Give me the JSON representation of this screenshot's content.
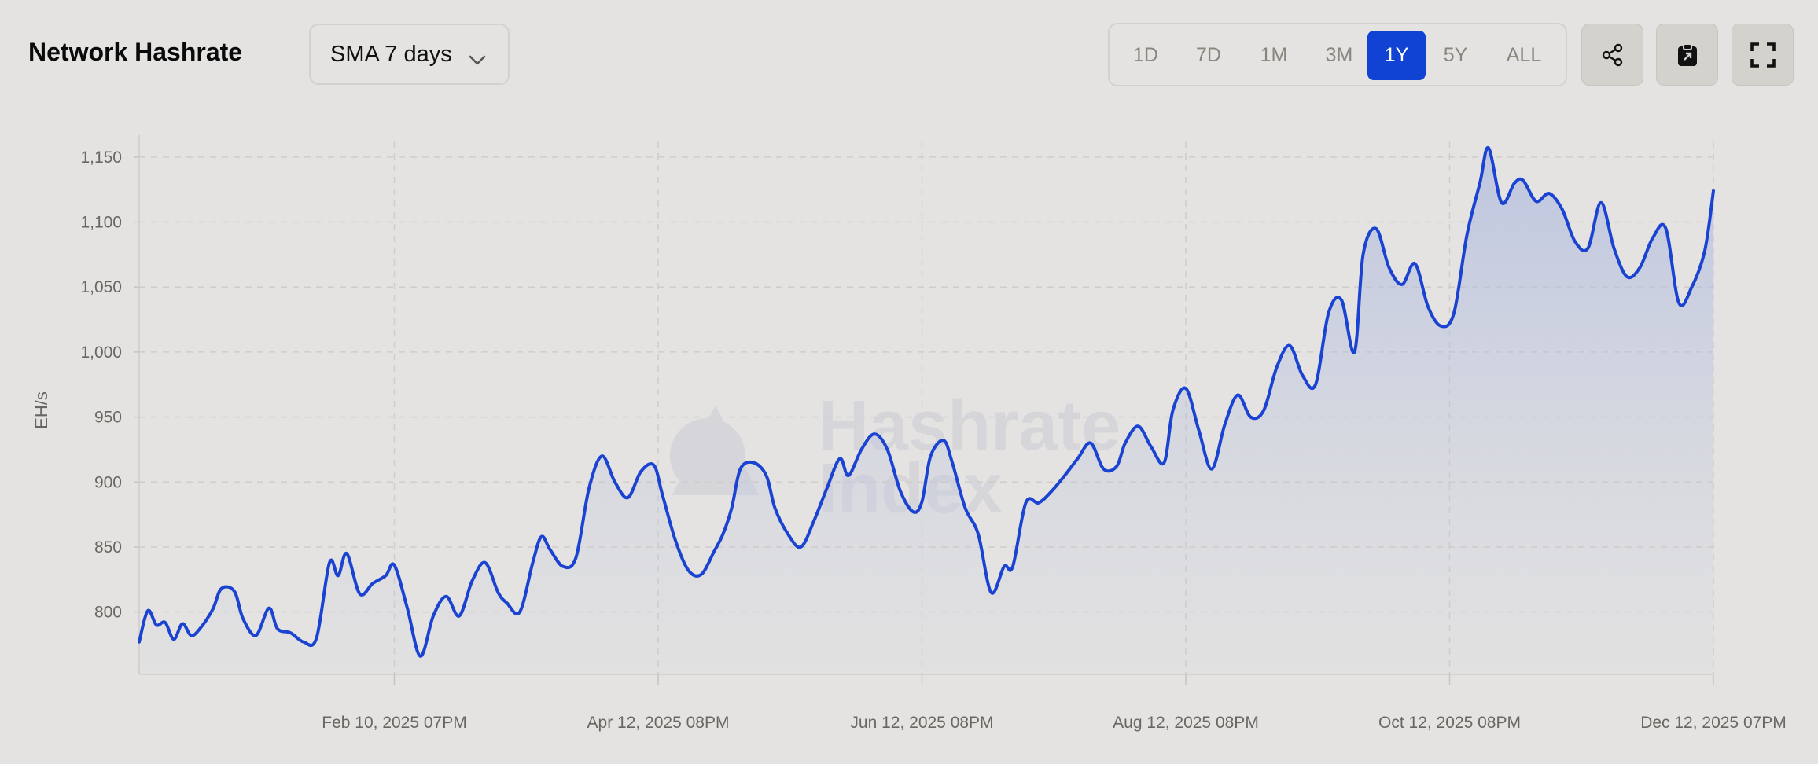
{
  "header": {
    "title": "Network Hashrate",
    "smoothing_select": {
      "value": "SMA 7 days"
    },
    "ranges": [
      "1D",
      "7D",
      "1M",
      "3M",
      "1Y",
      "5Y",
      "ALL"
    ],
    "active_range": "1Y",
    "actions": {
      "share_icon": "share-icon",
      "clipboard_icon": "clipboard-icon",
      "fullscreen_icon": "fullscreen-icon"
    }
  },
  "colors": {
    "background": "#e4e3e1",
    "line": "#1a43d2",
    "active_range": "#1043d4",
    "grid": "#cfcdca"
  },
  "watermark": [
    "Hashrate",
    "Index"
  ],
  "chart_data": {
    "type": "area",
    "title": "",
    "ylabel": "EH/s",
    "xlabel": "",
    "ylim": [
      752,
      1162
    ],
    "yticks": [
      800,
      850,
      900,
      950,
      1000,
      1050,
      1100,
      1150
    ],
    "x_start": "2024-12-13",
    "x_end": "2025-12-12",
    "xticks": [
      {
        "date": "2025-02-10",
        "label": "Feb 10, 2025 07PM"
      },
      {
        "date": "2025-04-12",
        "label": "Apr 12, 2025 08PM"
      },
      {
        "date": "2025-06-12",
        "label": "Jun 12, 2025 08PM"
      },
      {
        "date": "2025-08-12",
        "label": "Aug 12, 2025 08PM"
      },
      {
        "date": "2025-10-12",
        "label": "Oct 12, 2025 08PM"
      },
      {
        "date": "2025-12-12",
        "label": "Dec 12, 2025 07PM"
      }
    ],
    "grid": true,
    "series": [
      {
        "points": [
          [
            "2024-12-13",
            777
          ],
          [
            "2024-12-15",
            801
          ],
          [
            "2024-12-17",
            790
          ],
          [
            "2024-12-19",
            792
          ],
          [
            "2024-12-21",
            779
          ],
          [
            "2024-12-23",
            791
          ],
          [
            "2024-12-25",
            782
          ],
          [
            "2024-12-27",
            787
          ],
          [
            "2024-12-30",
            802
          ],
          [
            "2025-01-01",
            818
          ],
          [
            "2025-01-04",
            816
          ],
          [
            "2025-01-06",
            795
          ],
          [
            "2025-01-09",
            782
          ],
          [
            "2025-01-12",
            803
          ],
          [
            "2025-01-14",
            787
          ],
          [
            "2025-01-17",
            784
          ],
          [
            "2025-01-20",
            777
          ],
          [
            "2025-01-23",
            780
          ],
          [
            "2025-01-26",
            838
          ],
          [
            "2025-01-28",
            828
          ],
          [
            "2025-01-30",
            845
          ],
          [
            "2025-02-02",
            814
          ],
          [
            "2025-02-05",
            822
          ],
          [
            "2025-02-08",
            828
          ],
          [
            "2025-02-10",
            836
          ],
          [
            "2025-02-13",
            803
          ],
          [
            "2025-02-16",
            766
          ],
          [
            "2025-02-19",
            797
          ],
          [
            "2025-02-22",
            812
          ],
          [
            "2025-02-25",
            797
          ],
          [
            "2025-02-28",
            824
          ],
          [
            "2025-03-03",
            838
          ],
          [
            "2025-03-06",
            815
          ],
          [
            "2025-03-08",
            807
          ],
          [
            "2025-03-11",
            800
          ],
          [
            "2025-03-14",
            838
          ],
          [
            "2025-03-16",
            858
          ],
          [
            "2025-03-18",
            848
          ],
          [
            "2025-03-21",
            835
          ],
          [
            "2025-03-24",
            842
          ],
          [
            "2025-03-27",
            895
          ],
          [
            "2025-03-30",
            920
          ],
          [
            "2025-04-02",
            900
          ],
          [
            "2025-04-05",
            888
          ],
          [
            "2025-04-08",
            908
          ],
          [
            "2025-04-11",
            913
          ],
          [
            "2025-04-13",
            890
          ],
          [
            "2025-04-16",
            855
          ],
          [
            "2025-04-19",
            832
          ],
          [
            "2025-04-22",
            829
          ],
          [
            "2025-04-25",
            847
          ],
          [
            "2025-04-27",
            860
          ],
          [
            "2025-04-29",
            880
          ],
          [
            "2025-05-01",
            910
          ],
          [
            "2025-05-04",
            915
          ],
          [
            "2025-05-07",
            905
          ],
          [
            "2025-05-09",
            880
          ],
          [
            "2025-05-12",
            860
          ],
          [
            "2025-05-15",
            850
          ],
          [
            "2025-05-18",
            870
          ],
          [
            "2025-05-21",
            895
          ],
          [
            "2025-05-24",
            918
          ],
          [
            "2025-05-26",
            905
          ],
          [
            "2025-05-29",
            925
          ],
          [
            "2025-06-01",
            937
          ],
          [
            "2025-06-04",
            925
          ],
          [
            "2025-06-07",
            893
          ],
          [
            "2025-06-10",
            877
          ],
          [
            "2025-06-12",
            885
          ],
          [
            "2025-06-14",
            920
          ],
          [
            "2025-06-17",
            932
          ],
          [
            "2025-06-19",
            915
          ],
          [
            "2025-06-22",
            880
          ],
          [
            "2025-06-25",
            860
          ],
          [
            "2025-06-28",
            815
          ],
          [
            "2025-07-01",
            835
          ],
          [
            "2025-07-03",
            835
          ],
          [
            "2025-07-06",
            884
          ],
          [
            "2025-07-09",
            884
          ],
          [
            "2025-07-12",
            893
          ],
          [
            "2025-07-15",
            905
          ],
          [
            "2025-07-18",
            918
          ],
          [
            "2025-07-21",
            930
          ],
          [
            "2025-07-24",
            910
          ],
          [
            "2025-07-27",
            912
          ],
          [
            "2025-07-29",
            930
          ],
          [
            "2025-08-01",
            943
          ],
          [
            "2025-08-04",
            927
          ],
          [
            "2025-08-07",
            915
          ],
          [
            "2025-08-09",
            955
          ],
          [
            "2025-08-12",
            972
          ],
          [
            "2025-08-15",
            940
          ],
          [
            "2025-08-18",
            910
          ],
          [
            "2025-08-21",
            944
          ],
          [
            "2025-08-24",
            967
          ],
          [
            "2025-08-27",
            950
          ],
          [
            "2025-08-30",
            955
          ],
          [
            "2025-09-02",
            988
          ],
          [
            "2025-09-05",
            1005
          ],
          [
            "2025-09-08",
            982
          ],
          [
            "2025-09-11",
            975
          ],
          [
            "2025-09-14",
            1030
          ],
          [
            "2025-09-17",
            1040
          ],
          [
            "2025-09-20",
            1000
          ],
          [
            "2025-09-22",
            1075
          ],
          [
            "2025-09-25",
            1095
          ],
          [
            "2025-09-28",
            1065
          ],
          [
            "2025-10-01",
            1052
          ],
          [
            "2025-10-04",
            1068
          ],
          [
            "2025-10-07",
            1035
          ],
          [
            "2025-10-10",
            1020
          ],
          [
            "2025-10-13",
            1030
          ],
          [
            "2025-10-16",
            1090
          ],
          [
            "2025-10-19",
            1130
          ],
          [
            "2025-10-21",
            1157
          ],
          [
            "2025-10-24",
            1115
          ],
          [
            "2025-10-27",
            1130
          ],
          [
            "2025-10-29",
            1132
          ],
          [
            "2025-11-01",
            1116
          ],
          [
            "2025-11-04",
            1122
          ],
          [
            "2025-11-07",
            1110
          ],
          [
            "2025-11-10",
            1085
          ],
          [
            "2025-11-13",
            1080
          ],
          [
            "2025-11-16",
            1115
          ],
          [
            "2025-11-19",
            1080
          ],
          [
            "2025-11-22",
            1058
          ],
          [
            "2025-11-25",
            1065
          ],
          [
            "2025-11-28",
            1088
          ],
          [
            "2025-12-01",
            1095
          ],
          [
            "2025-12-04",
            1038
          ],
          [
            "2025-12-07",
            1050
          ],
          [
            "2025-12-10",
            1078
          ],
          [
            "2025-12-12",
            1124
          ]
        ]
      }
    ]
  }
}
